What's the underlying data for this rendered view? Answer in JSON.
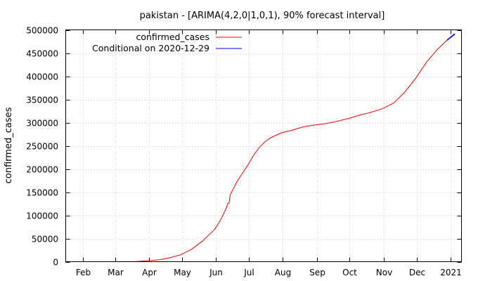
{
  "chart_data": {
    "type": "line",
    "title": "pakistan -  [ARIMA(4,2,0|1,0,1), 90% forecast interval]",
    "xlabel": "",
    "ylabel": "confirmed_cases",
    "ylim": [
      0,
      500000
    ],
    "xlim": [
      "2020-01-16",
      "2021-01-11"
    ],
    "y_ticks": [
      0,
      50000,
      100000,
      150000,
      200000,
      250000,
      300000,
      350000,
      400000,
      450000,
      500000
    ],
    "x_ticks": [
      {
        "label": "Feb",
        "date": "2020-02-01"
      },
      {
        "label": "Mar",
        "date": "2020-03-01"
      },
      {
        "label": "Apr",
        "date": "2020-04-01"
      },
      {
        "label": "May",
        "date": "2020-05-01"
      },
      {
        "label": "Jun",
        "date": "2020-06-01"
      },
      {
        "label": "Jul",
        "date": "2020-07-01"
      },
      {
        "label": "Aug",
        "date": "2020-08-01"
      },
      {
        "label": "Sep",
        "date": "2020-09-01"
      },
      {
        "label": "Oct",
        "date": "2020-10-01"
      },
      {
        "label": "Nov",
        "date": "2020-11-01"
      },
      {
        "label": "Dec",
        "date": "2020-12-01"
      },
      {
        "label": "2021",
        "date": "2021-01-01"
      }
    ],
    "grid": true,
    "legend_position": "top-left",
    "series": [
      {
        "name": "confirmed_cases",
        "color": "#ff0000",
        "points": [
          [
            "2020-02-26",
            0
          ],
          [
            "2020-03-10",
            100
          ],
          [
            "2020-03-20",
            500
          ],
          [
            "2020-03-25",
            1100
          ],
          [
            "2020-04-01",
            2200
          ],
          [
            "2020-04-10",
            4300
          ],
          [
            "2020-04-20",
            8500
          ],
          [
            "2020-04-30",
            15000
          ],
          [
            "2020-05-10",
            27000
          ],
          [
            "2020-05-20",
            45000
          ],
          [
            "2020-05-31",
            70000
          ],
          [
            "2020-06-05",
            89000
          ],
          [
            "2020-06-10",
            113000
          ],
          [
            "2020-06-12",
            126000
          ],
          [
            "2020-06-13",
            126000
          ],
          [
            "2020-06-14",
            144000
          ],
          [
            "2020-06-20",
            172000
          ],
          [
            "2020-06-25",
            190000
          ],
          [
            "2020-06-30",
            208000
          ],
          [
            "2020-07-05",
            228000
          ],
          [
            "2020-07-10",
            245000
          ],
          [
            "2020-07-15",
            257000
          ],
          [
            "2020-07-20",
            266000
          ],
          [
            "2020-07-25",
            272000
          ],
          [
            "2020-07-31",
            278000
          ],
          [
            "2020-08-10",
            284000
          ],
          [
            "2020-08-20",
            291000
          ],
          [
            "2020-08-31",
            295000
          ],
          [
            "2020-09-10",
            298000
          ],
          [
            "2020-09-20",
            303000
          ],
          [
            "2020-09-30",
            309000
          ],
          [
            "2020-10-10",
            316000
          ],
          [
            "2020-10-20",
            322000
          ],
          [
            "2020-10-31",
            330000
          ],
          [
            "2020-11-10",
            342000
          ],
          [
            "2020-11-20",
            365000
          ],
          [
            "2020-11-30",
            395000
          ],
          [
            "2020-12-10",
            430000
          ],
          [
            "2020-12-20",
            458000
          ],
          [
            "2020-12-29",
            478000
          ],
          [
            "2021-01-05",
            490000
          ]
        ]
      },
      {
        "name": "Conditional on 2020-12-29",
        "color": "#0000ff",
        "points": [
          [
            "2020-12-29",
            478000
          ],
          [
            "2021-01-05",
            491500
          ]
        ]
      }
    ]
  }
}
